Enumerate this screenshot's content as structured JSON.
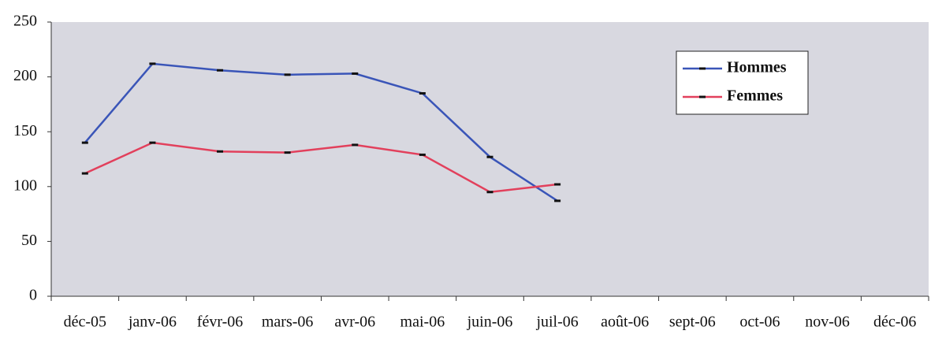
{
  "chart_data": {
    "type": "line",
    "categories": [
      "déc-05",
      "janv-06",
      "févr-06",
      "mars-06",
      "avr-06",
      "mai-06",
      "juin-06",
      "juil-06",
      "août-06",
      "sept-06",
      "oct-06",
      "nov-06",
      "déc-06"
    ],
    "series": [
      {
        "name": "Hommes",
        "color": "#3a55b8",
        "values": [
          140,
          212,
          206,
          202,
          203,
          185,
          127,
          87,
          null,
          null,
          null,
          null,
          null
        ]
      },
      {
        "name": "Femmes",
        "color": "#e2405c",
        "values": [
          112,
          140,
          132,
          131,
          138,
          129,
          95,
          102,
          null,
          null,
          null,
          null,
          null
        ]
      }
    ],
    "ylim": [
      0,
      250
    ],
    "yticks": [
      0,
      50,
      100,
      150,
      200,
      250
    ],
    "grid": false,
    "legend": "upper right"
  }
}
